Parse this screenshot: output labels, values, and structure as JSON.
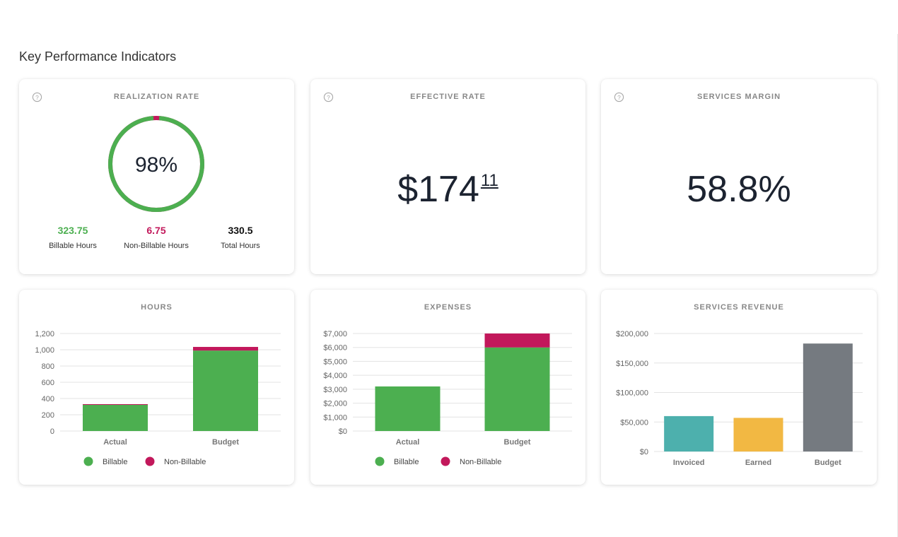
{
  "page": {
    "title": "Key Performance Indicators"
  },
  "colors": {
    "billable": "#4caf50",
    "non_billable": "#c2185b",
    "invoiced": "#4db0ad",
    "earned": "#f2b843",
    "budget": "#757a80"
  },
  "icons": {
    "help": "help-circle-icon",
    "legend_marker": "circle"
  },
  "realization": {
    "title": "REALIZATION RATE",
    "percent": "98%",
    "rate": 0.98,
    "billable_value": "323.75",
    "billable_label": "Billable Hours",
    "nonbillable_value": "6.75",
    "nonbillable_label": "Non-Billable Hours",
    "total_value": "330.5",
    "total_label": "Total Hours"
  },
  "effective_rate": {
    "title": "EFFECTIVE RATE",
    "dollars": "$174",
    "cents": "11"
  },
  "services_margin": {
    "title": "SERVICES MARGIN",
    "value": "58.8%"
  },
  "chart_data": [
    {
      "type": "bar",
      "stacked": true,
      "title": "HOURS",
      "categories": [
        "Actual",
        "Budget"
      ],
      "series": [
        {
          "name": "Billable",
          "values": [
            323.75,
            990
          ]
        },
        {
          "name": "Non-Billable",
          "values": [
            6.75,
            45
          ]
        }
      ],
      "ylim": [
        0,
        1200
      ],
      "yticks": [
        0,
        200,
        400,
        600,
        800,
        1000,
        1200
      ],
      "ytick_labels": [
        "0",
        "200",
        "400",
        "600",
        "800",
        "1,000",
        "1,200"
      ],
      "legend": "bottom"
    },
    {
      "type": "bar",
      "stacked": true,
      "title": "EXPENSES",
      "categories": [
        "Actual",
        "Budget"
      ],
      "series": [
        {
          "name": "Billable",
          "values": [
            3200,
            6000
          ]
        },
        {
          "name": "Non-Billable",
          "values": [
            0,
            1000
          ]
        }
      ],
      "ylim": [
        0,
        7000
      ],
      "yticks": [
        0,
        1000,
        2000,
        3000,
        4000,
        5000,
        6000,
        7000
      ],
      "ytick_labels": [
        "$0",
        "$1,000",
        "$2,000",
        "$3,000",
        "$4,000",
        "$5,000",
        "$6,000",
        "$7,000"
      ],
      "legend": "bottom"
    },
    {
      "type": "bar",
      "stacked": false,
      "title": "SERVICES REVENUE",
      "categories": [
        "Invoiced",
        "Earned",
        "Budget"
      ],
      "series": [
        {
          "name": "Revenue",
          "values": [
            60000,
            57000,
            183000
          ]
        }
      ],
      "ylim": [
        0,
        200000
      ],
      "yticks": [
        0,
        50000,
        100000,
        150000,
        200000
      ],
      "ytick_labels": [
        "$0",
        "$50,000",
        "$100,000",
        "$150,000",
        "$200,000"
      ],
      "legend": "none"
    }
  ]
}
